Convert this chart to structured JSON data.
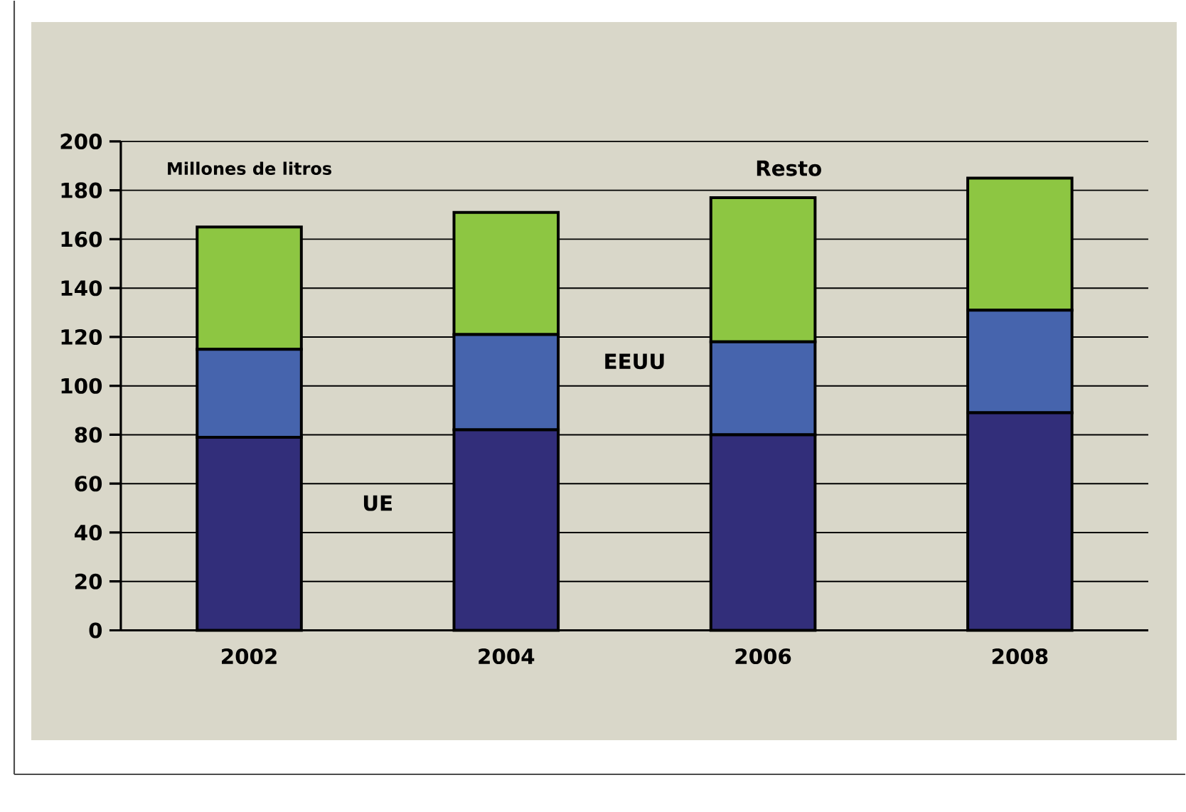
{
  "chart_data": {
    "type": "bar",
    "stacked": true,
    "ylabel": "Millones de litros",
    "categories": [
      "2002",
      "2004",
      "2006",
      "2008"
    ],
    "series": [
      {
        "name": "UE",
        "color": "#322e7a",
        "values": [
          79,
          82,
          80,
          89
        ]
      },
      {
        "name": "EEUU",
        "color": "#4664ad",
        "values": [
          36,
          39,
          38,
          42
        ]
      },
      {
        "name": "Resto",
        "color": "#8dc642",
        "values": [
          50,
          50,
          59,
          54
        ]
      }
    ],
    "ylim": [
      0,
      200
    ],
    "yticks": [
      0,
      20,
      40,
      60,
      80,
      100,
      120,
      140,
      160,
      180,
      200
    ],
    "grid": "y"
  }
}
